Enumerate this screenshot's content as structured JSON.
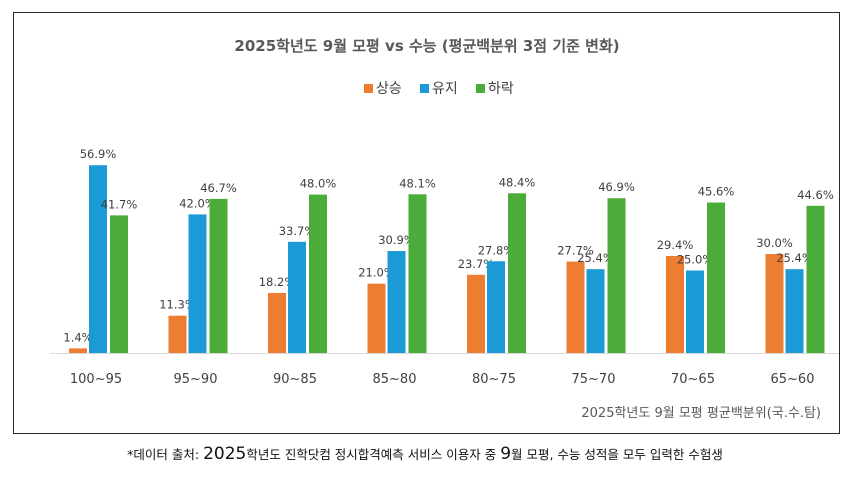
{
  "chart_data": {
    "type": "bar",
    "title": "2025학년도 9월 모평 vs 수능 (평균백분위 3점 기준 변화)",
    "categories": [
      "100~95",
      "95~90",
      "90~85",
      "85~80",
      "80~75",
      "75~70",
      "70~65",
      "65~60"
    ],
    "series": [
      {
        "name": "상승",
        "color": "#ED7D31",
        "values": [
          1.4,
          11.3,
          18.2,
          21.0,
          23.7,
          27.7,
          29.4,
          30.0
        ]
      },
      {
        "name": "유지",
        "color": "#1B9AD6",
        "values": [
          56.9,
          42.0,
          33.7,
          30.9,
          27.8,
          25.4,
          25.0,
          25.4
        ]
      },
      {
        "name": "하락",
        "color": "#4CAC3A",
        "values": [
          41.7,
          46.7,
          48.0,
          48.1,
          48.4,
          46.9,
          45.6,
          44.6
        ]
      }
    ],
    "ylim": [
      0,
      60
    ],
    "value_format": "{v}%",
    "xlabel": "2025학년도 9월 모평 평균백분위(국.수.탐)",
    "ylabel": "",
    "legend_position": "top-center",
    "grid": false,
    "y_axis_visible": false
  },
  "source_note": {
    "prefix": "*데이터 출처: ",
    "year": "2025",
    "middle": "학년도 진학닷컴 정시합격예측 서비스 이용자 중 ",
    "month": "9",
    "suffix": "월 모평, 수능 성적을 모두 입력한 수험생"
  }
}
